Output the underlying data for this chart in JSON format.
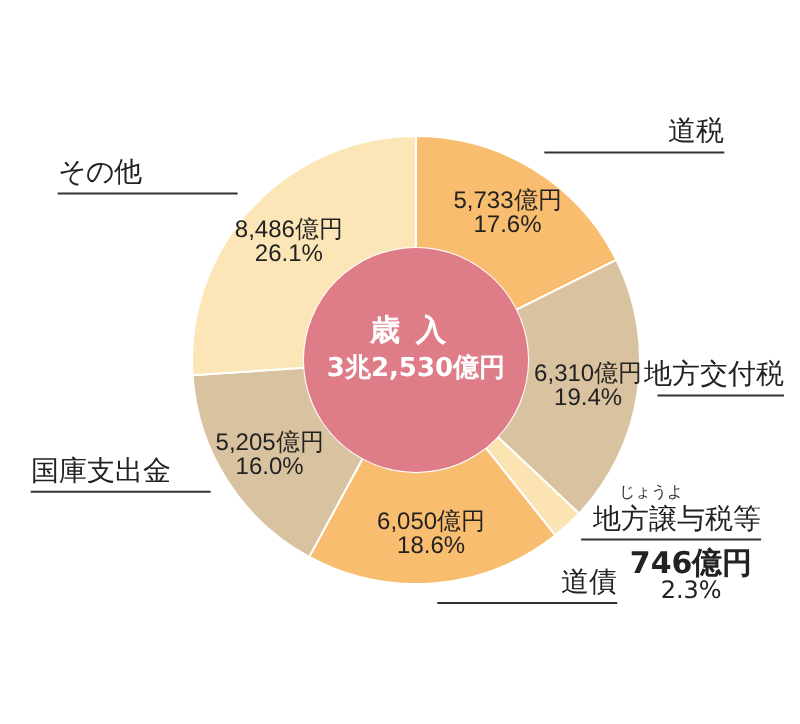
{
  "chart_data": {
    "type": "donut",
    "title": "歳入",
    "subtitle": "3兆2,530億円",
    "categories": [
      "道税",
      "地方交付税",
      "地方譲与税等",
      "道債",
      "国庫支出金",
      "その他"
    ],
    "values": [
      5733,
      6310,
      746,
      6050,
      5205,
      8486
    ],
    "value_labels": [
      "5,733億円\n17.6%",
      "6,310億円\n19.4%",
      "746億円\n2.3%",
      "6,050億円\n18.6%",
      "5,205億円\n16.0%",
      "8,486億円\n26.1%"
    ],
    "colors": [
      "#f8bd6e",
      "#d9c29f",
      "#fbe3b2",
      "#f8bd6e",
      "#d9c29f",
      "#fce6b8"
    ],
    "annotations": [
      "じょうよ"
    ],
    "legend": false
  }
}
